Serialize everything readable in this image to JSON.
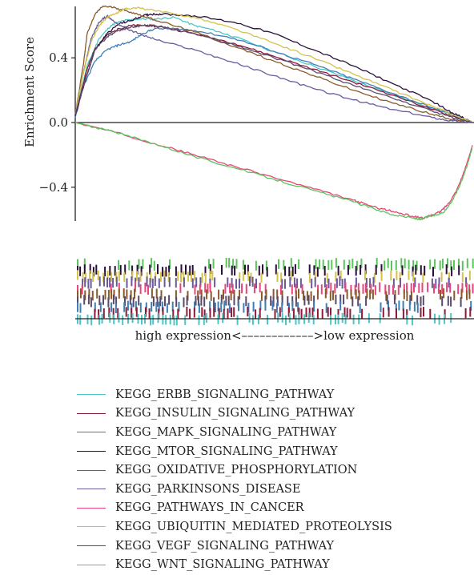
{
  "chart_data": {
    "type": "line",
    "ylabel": "Enrichment Score",
    "xcaption": "high expression<––––––––––––>low expression",
    "ylim": [
      -0.65,
      0.75
    ],
    "xlim": [
      0,
      1
    ],
    "yticks": [
      {
        "value": 0.4,
        "label": "0.4"
      },
      {
        "value": 0.0,
        "label": "0.0"
      },
      {
        "value": -0.4,
        "label": "−0.4"
      }
    ],
    "grid": false,
    "legend_position": "bottom",
    "series": [
      {
        "name": "KEGG_ERBB_SIGNALING_PATHWAY",
        "color": "#4cc6c6",
        "points": [
          [
            0,
            0.05
          ],
          [
            0.03,
            0.35
          ],
          [
            0.06,
            0.52
          ],
          [
            0.09,
            0.6
          ],
          [
            0.12,
            0.63
          ],
          [
            0.16,
            0.64
          ],
          [
            0.2,
            0.64
          ],
          [
            0.25,
            0.65
          ],
          [
            0.3,
            0.6
          ],
          [
            0.35,
            0.57
          ],
          [
            0.4,
            0.53
          ],
          [
            0.5,
            0.44
          ],
          [
            0.6,
            0.35
          ],
          [
            0.7,
            0.26
          ],
          [
            0.8,
            0.17
          ],
          [
            0.9,
            0.09
          ],
          [
            0.95,
            0.05
          ],
          [
            1,
            0
          ]
        ]
      },
      {
        "name": "KEGG_INSULIN_SIGNALING_PATHWAY",
        "color": "#8c1a3a",
        "points": [
          [
            0,
            0.05
          ],
          [
            0.03,
            0.33
          ],
          [
            0.05,
            0.46
          ],
          [
            0.08,
            0.54
          ],
          [
            0.11,
            0.58
          ],
          [
            0.14,
            0.6
          ],
          [
            0.18,
            0.6
          ],
          [
            0.22,
            0.59
          ],
          [
            0.3,
            0.55
          ],
          [
            0.4,
            0.49
          ],
          [
            0.5,
            0.41
          ],
          [
            0.6,
            0.33
          ],
          [
            0.7,
            0.25
          ],
          [
            0.8,
            0.17
          ],
          [
            0.9,
            0.08
          ],
          [
            0.95,
            0.04
          ],
          [
            1,
            0
          ]
        ]
      },
      {
        "name": "KEGG_MAPK_SIGNALING_PATHWAY",
        "color": "#3f7fb5",
        "points": [
          [
            0,
            0.03
          ],
          [
            0.02,
            0.22
          ],
          [
            0.05,
            0.38
          ],
          [
            0.08,
            0.45
          ],
          [
            0.11,
            0.48
          ],
          [
            0.14,
            0.5
          ],
          [
            0.17,
            0.55
          ],
          [
            0.2,
            0.58
          ],
          [
            0.25,
            0.58
          ],
          [
            0.3,
            0.57
          ],
          [
            0.4,
            0.52
          ],
          [
            0.5,
            0.44
          ],
          [
            0.6,
            0.36
          ],
          [
            0.7,
            0.27
          ],
          [
            0.8,
            0.18
          ],
          [
            0.9,
            0.09
          ],
          [
            0.95,
            0.05
          ],
          [
            1,
            0
          ]
        ]
      },
      {
        "name": "KEGG_MTOR_SIGNALING_PATHWAY",
        "color": "#2b0f3a",
        "points": [
          [
            0,
            0.04
          ],
          [
            0.03,
            0.3
          ],
          [
            0.05,
            0.45
          ],
          [
            0.08,
            0.55
          ],
          [
            0.11,
            0.61
          ],
          [
            0.14,
            0.63
          ],
          [
            0.17,
            0.66
          ],
          [
            0.19,
            0.67
          ],
          [
            0.22,
            0.67
          ],
          [
            0.3,
            0.66
          ],
          [
            0.4,
            0.62
          ],
          [
            0.5,
            0.55
          ],
          [
            0.6,
            0.45
          ],
          [
            0.7,
            0.35
          ],
          [
            0.8,
            0.24
          ],
          [
            0.9,
            0.13
          ],
          [
            0.95,
            0.06
          ],
          [
            1,
            0
          ]
        ]
      },
      {
        "name": "KEGG_OXIDATIVE_PHOSPHORYLATION",
        "color": "#8a5a2b",
        "points": [
          [
            0,
            0.05
          ],
          [
            0.02,
            0.35
          ],
          [
            0.03,
            0.55
          ],
          [
            0.05,
            0.67
          ],
          [
            0.07,
            0.72
          ],
          [
            0.1,
            0.71
          ],
          [
            0.13,
            0.69
          ],
          [
            0.17,
            0.66
          ],
          [
            0.22,
            0.62
          ],
          [
            0.3,
            0.56
          ],
          [
            0.4,
            0.47
          ],
          [
            0.5,
            0.38
          ],
          [
            0.6,
            0.29
          ],
          [
            0.7,
            0.2
          ],
          [
            0.8,
            0.12
          ],
          [
            0.9,
            0.05
          ],
          [
            0.95,
            0.02
          ],
          [
            1,
            0
          ]
        ]
      },
      {
        "name": "KEGG_PARKINSONS_DISEASE",
        "color": "#6a5a9c",
        "points": [
          [
            0,
            0.05
          ],
          [
            0.02,
            0.3
          ],
          [
            0.04,
            0.52
          ],
          [
            0.06,
            0.62
          ],
          [
            0.08,
            0.66
          ],
          [
            0.1,
            0.62
          ],
          [
            0.13,
            0.58
          ],
          [
            0.17,
            0.54
          ],
          [
            0.22,
            0.5
          ],
          [
            0.3,
            0.45
          ],
          [
            0.4,
            0.37
          ],
          [
            0.5,
            0.29
          ],
          [
            0.6,
            0.21
          ],
          [
            0.7,
            0.14
          ],
          [
            0.8,
            0.08
          ],
          [
            0.9,
            0.03
          ],
          [
            0.95,
            0.01
          ],
          [
            1,
            0
          ]
        ]
      },
      {
        "name": "KEGG_PATHWAYS_IN_CANCER",
        "color": "#e8457a",
        "points": [
          [
            0,
            0
          ],
          [
            0.1,
            -0.06
          ],
          [
            0.2,
            -0.13
          ],
          [
            0.3,
            -0.2
          ],
          [
            0.4,
            -0.27
          ],
          [
            0.5,
            -0.34
          ],
          [
            0.6,
            -0.41
          ],
          [
            0.7,
            -0.48
          ],
          [
            0.75,
            -0.52
          ],
          [
            0.8,
            -0.55
          ],
          [
            0.85,
            -0.58
          ],
          [
            0.88,
            -0.59
          ],
          [
            0.9,
            -0.57
          ],
          [
            0.92,
            -0.55
          ],
          [
            0.94,
            -0.5
          ],
          [
            0.96,
            -0.42
          ],
          [
            0.98,
            -0.3
          ],
          [
            1,
            -0.14
          ]
        ]
      },
      {
        "name": "KEGG_UBIQUITIN_MEDIATED_PROTEOLYSIS",
        "color": "#d4c24a",
        "points": [
          [
            0,
            0.05
          ],
          [
            0.02,
            0.3
          ],
          [
            0.04,
            0.5
          ],
          [
            0.06,
            0.6
          ],
          [
            0.08,
            0.65
          ],
          [
            0.1,
            0.67
          ],
          [
            0.12,
            0.7
          ],
          [
            0.15,
            0.71
          ],
          [
            0.18,
            0.7
          ],
          [
            0.25,
            0.67
          ],
          [
            0.3,
            0.65
          ],
          [
            0.4,
            0.58
          ],
          [
            0.5,
            0.49
          ],
          [
            0.6,
            0.4
          ],
          [
            0.7,
            0.3
          ],
          [
            0.8,
            0.2
          ],
          [
            0.9,
            0.1
          ],
          [
            0.95,
            0.05
          ],
          [
            1,
            0
          ]
        ]
      },
      {
        "name": "KEGG_VEGF_SIGNALING_PATHWAY",
        "color": "#5a4a6a",
        "points": [
          [
            0,
            0.05
          ],
          [
            0.03,
            0.3
          ],
          [
            0.05,
            0.45
          ],
          [
            0.08,
            0.53
          ],
          [
            0.11,
            0.57
          ],
          [
            0.14,
            0.59
          ],
          [
            0.17,
            0.6
          ],
          [
            0.2,
            0.6
          ],
          [
            0.3,
            0.55
          ],
          [
            0.4,
            0.48
          ],
          [
            0.5,
            0.4
          ],
          [
            0.6,
            0.32
          ],
          [
            0.7,
            0.23
          ],
          [
            0.8,
            0.15
          ],
          [
            0.9,
            0.07
          ],
          [
            0.95,
            0.03
          ],
          [
            1,
            0
          ]
        ]
      },
      {
        "name": "KEGG_WNT_SIGNALING_PATHWAY",
        "color": "#5cc45c",
        "points": [
          [
            0,
            0
          ],
          [
            0.1,
            -0.06
          ],
          [
            0.2,
            -0.13
          ],
          [
            0.3,
            -0.21
          ],
          [
            0.4,
            -0.28
          ],
          [
            0.5,
            -0.35
          ],
          [
            0.6,
            -0.42
          ],
          [
            0.7,
            -0.49
          ],
          [
            0.75,
            -0.53
          ],
          [
            0.8,
            -0.57
          ],
          [
            0.85,
            -0.59
          ],
          [
            0.87,
            -0.6
          ],
          [
            0.89,
            -0.58
          ],
          [
            0.91,
            -0.57
          ],
          [
            0.93,
            -0.55
          ],
          [
            0.95,
            -0.48
          ],
          [
            0.97,
            -0.38
          ],
          [
            0.99,
            -0.24
          ],
          [
            1,
            -0.15
          ]
        ]
      }
    ]
  }
}
